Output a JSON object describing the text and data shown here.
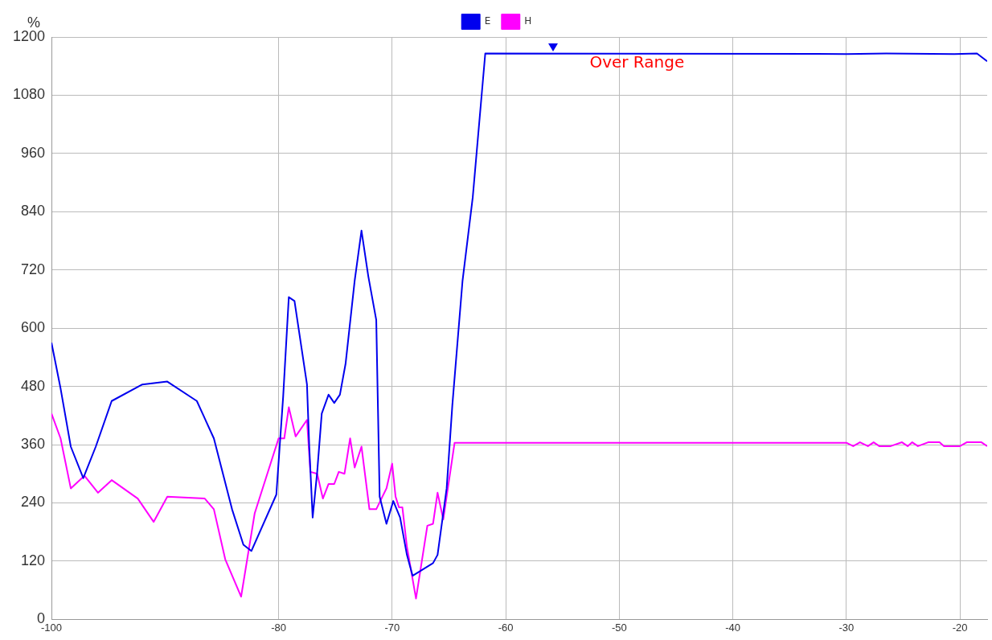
{
  "chart_data": {
    "type": "line",
    "ylabel": "%",
    "legend": "top",
    "grid": true,
    "marker": "none",
    "line_style": "solid",
    "xlim": [
      -100,
      -17.6
    ],
    "xticks": [
      -100,
      -80,
      -70,
      -60,
      -50,
      -40,
      -30,
      -20
    ],
    "ylim": [
      0,
      1200
    ],
    "yticks": [
      0,
      120,
      240,
      360,
      480,
      600,
      720,
      840,
      960,
      1080,
      1200
    ],
    "annotations": [
      {
        "text": "Over Range",
        "x": -55.8,
        "y": 1166
      }
    ],
    "series": [
      {
        "name": "E",
        "color": "#0000ee",
        "x": [
          -100,
          -99.2,
          -98.3,
          -97.2,
          -96.1,
          -94.7,
          -92.0,
          -89.8,
          -87.2,
          -85.7,
          -84.1,
          -83.1,
          -82.4,
          -80.2,
          -79.6,
          -79.1,
          -78.6,
          -77.5,
          -77.3,
          -77.0,
          -76.6,
          -76.2,
          -75.6,
          -75.1,
          -74.6,
          -74.1,
          -73.3,
          -72.7,
          -72.1,
          -71.4,
          -71.1,
          -70.5,
          -69.9,
          -69.3,
          -68.7,
          -68.2,
          -66.4,
          -66.0,
          -65.2,
          -64.7,
          -63.8,
          -62.9,
          -61.8,
          -30,
          -26.5,
          -20.5,
          -18.5,
          -17.6
        ],
        "values": [
          570,
          476,
          356,
          291,
          356,
          450,
          484,
          490,
          450,
          373,
          227,
          154,
          141,
          257,
          458,
          664,
          656,
          484,
          356,
          210,
          304,
          424,
          463,
          446,
          463,
          527,
          698,
          801,
          707,
          617,
          253,
          197,
          244,
          210,
          133,
          90,
          116,
          133,
          270,
          441,
          698,
          870,
          1166,
          1165,
          1166,
          1165,
          1166,
          1150
        ]
      },
      {
        "name": "H",
        "color": "#ff00ff",
        "x": [
          -100,
          -99.2,
          -98.3,
          -97.1,
          -95.9,
          -94.7,
          -92.4,
          -91.0,
          -89.8,
          -86.5,
          -85.7,
          -84.7,
          -83.3,
          -82.1,
          -80.0,
          -79.5,
          -79.1,
          -78.5,
          -77.5,
          -77.2,
          -76.6,
          -76.1,
          -75.6,
          -75.1,
          -74.7,
          -74.2,
          -73.7,
          -73.3,
          -72.7,
          -72.0,
          -71.4,
          -70.5,
          -70.0,
          -69.7,
          -69.4,
          -69.1,
          -68.7,
          -67.9,
          -66.9,
          -66.4,
          -66.0,
          -65.5,
          -64.5,
          -30,
          -29.4,
          -28.8,
          -28.1,
          -27.6,
          -27.1,
          -26.1,
          -25.1,
          -24.6,
          -24.2,
          -23.7,
          -22.8,
          -21.8,
          -21.4,
          -20,
          -19.4,
          -18.1,
          -17.6
        ],
        "values": [
          424,
          373,
          270,
          296,
          261,
          287,
          249,
          201,
          253,
          249,
          227,
          124,
          47,
          219,
          373,
          373,
          437,
          377,
          411,
          304,
          300,
          249,
          279,
          279,
          304,
          300,
          373,
          313,
          356,
          227,
          227,
          270,
          321,
          253,
          231,
          231,
          150,
          43,
          193,
          197,
          261,
          206,
          364,
          364,
          357,
          365,
          357,
          365,
          357,
          357,
          365,
          357,
          365,
          357,
          365,
          365,
          357,
          357,
          365,
          365,
          357
        ]
      }
    ]
  }
}
